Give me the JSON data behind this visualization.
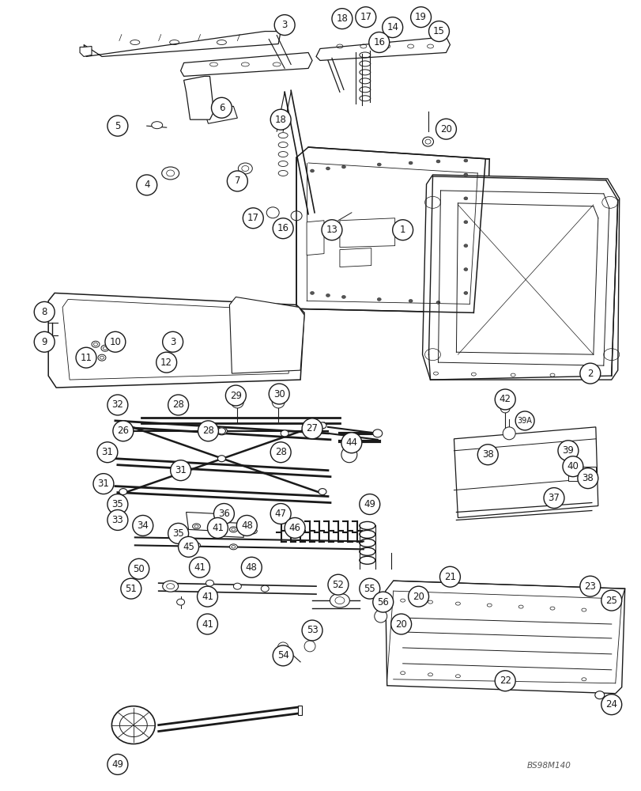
{
  "bg_color": "#ffffff",
  "line_color": "#1a1a1a",
  "watermark": "BS98M140",
  "figsize": [
    8.12,
    10.0
  ],
  "dpi": 100
}
